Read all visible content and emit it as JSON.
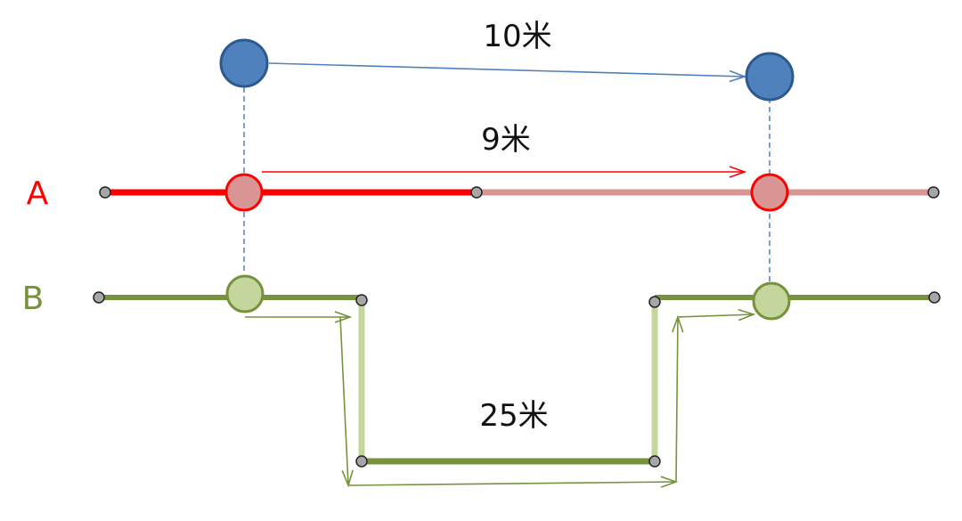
{
  "labels": {
    "distance_top": "10米",
    "distance_mid": "9米",
    "distance_bottom": "25米",
    "track_a": "A",
    "track_b": "B"
  },
  "colors": {
    "blue_node_fill": "#4f81bd",
    "blue_node_stroke": "#2c5a8f",
    "blue_arrow": "#4f81bd",
    "dashed_guide": "#4f81bd",
    "track_a_main": "#ff0000",
    "track_a_faded": "#d99594",
    "track_a_node_fill": "#d99594",
    "track_b_main": "#76923c",
    "track_b_light": "#c3d69b",
    "track_b_node_fill": "#c3d69b",
    "track_b_arrow": "#77933c",
    "endpoint_fill": "#a6a6a6",
    "label_a": "#ff0000",
    "label_b": "#76923c"
  }
}
